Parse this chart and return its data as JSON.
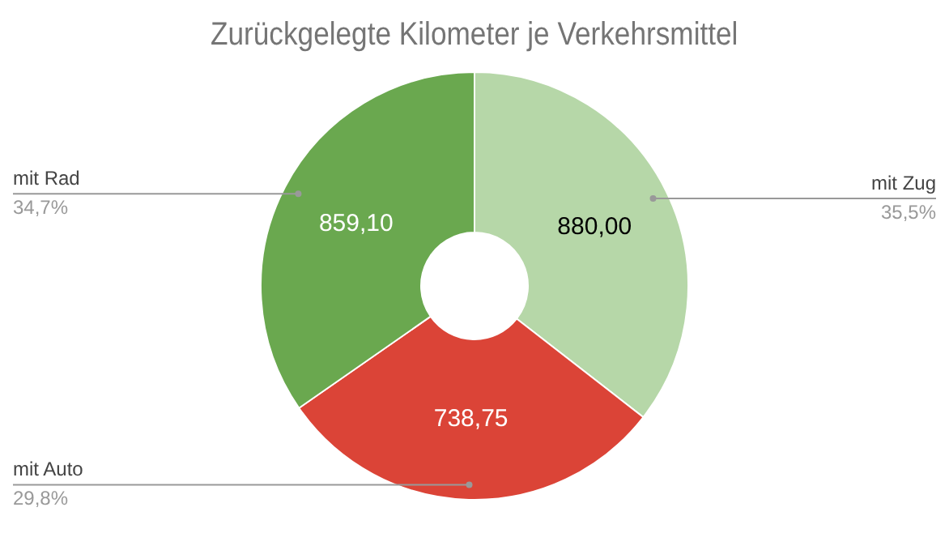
{
  "chart_data": {
    "type": "donut",
    "title": "Zurückgelegte Kilometer je Verkehrsmittel",
    "categories": [
      "mit Zug",
      "mit Auto",
      "mit Rad"
    ],
    "values": [
      880.0,
      738.75,
      859.1
    ],
    "colors": [
      "#b6d7a8",
      "#db4437",
      "#6aa84f"
    ],
    "value_labels": [
      "880,00",
      "738,75",
      "859,10"
    ],
    "annotations": [
      "35,5%",
      "29,8%",
      "34,7%"
    ]
  }
}
